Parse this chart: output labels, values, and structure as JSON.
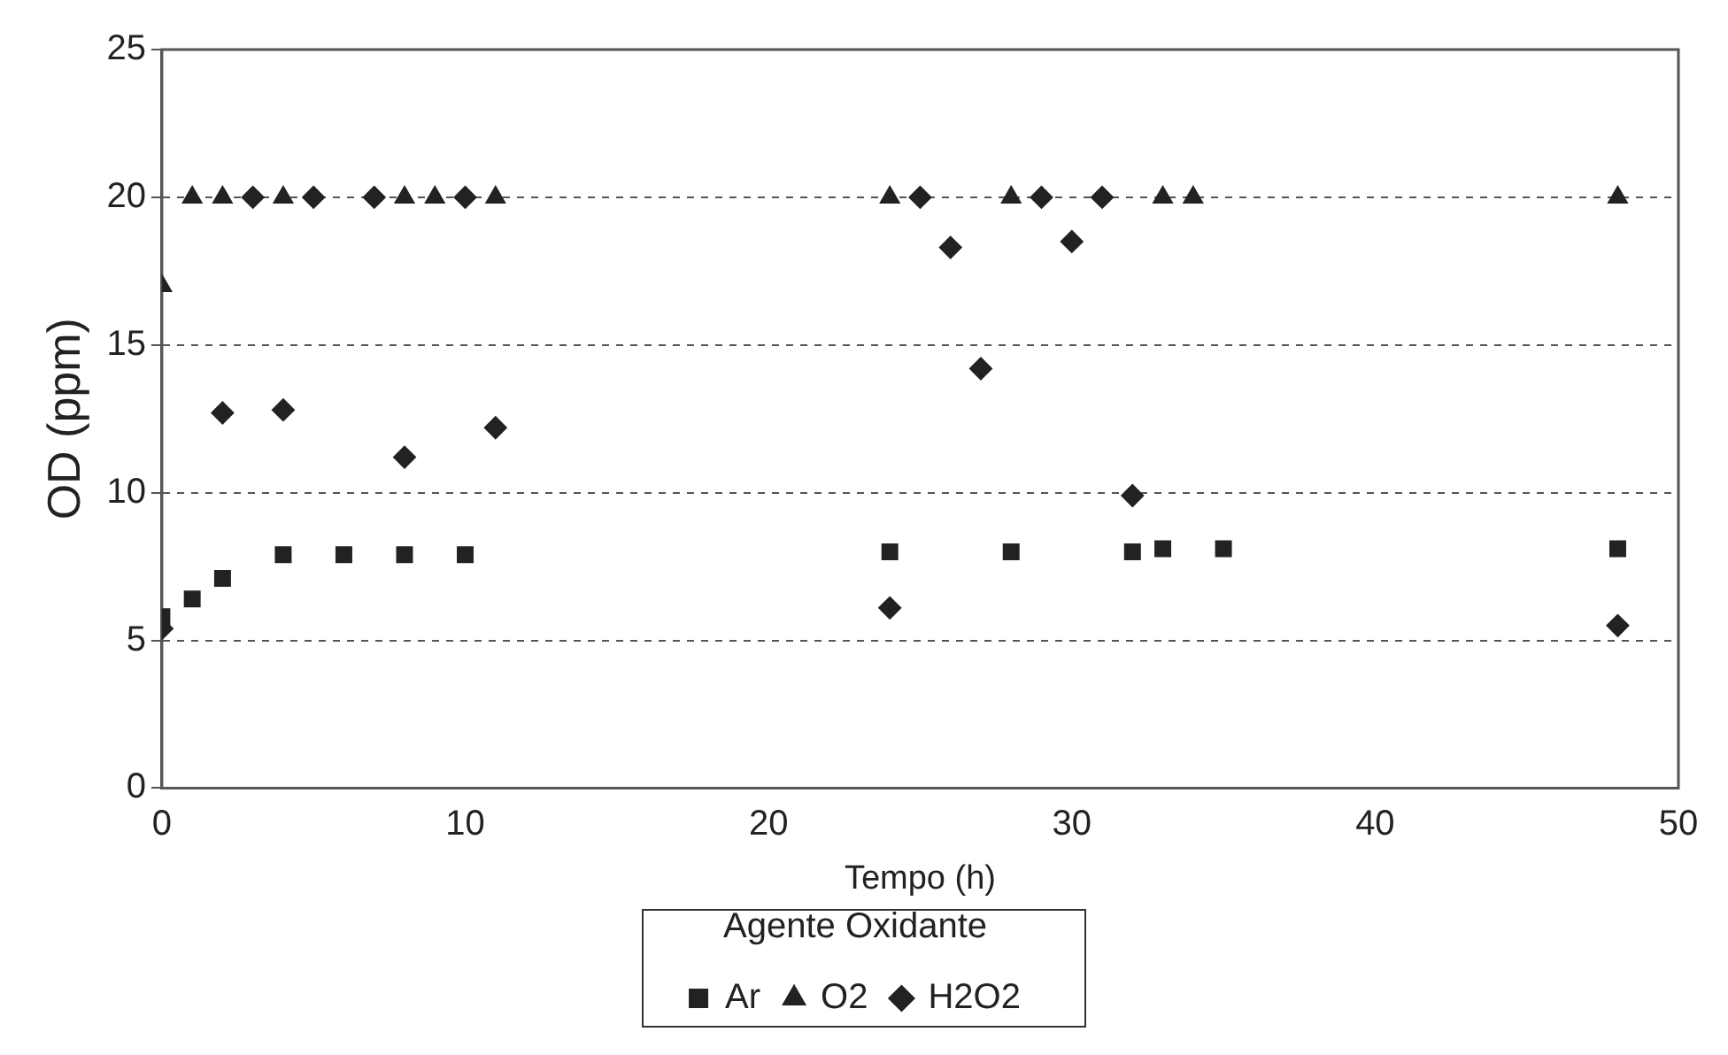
{
  "chart_data": {
    "type": "scatter",
    "xlabel": "Tempo (h)",
    "ylabel": "OD (ppm)",
    "legend_title": "Agente Oxidante",
    "legend": "bottom",
    "grid": "y",
    "xlim": [
      0,
      50
    ],
    "xticks": [
      0,
      10,
      20,
      30,
      40,
      50
    ],
    "ylim": [
      0,
      25
    ],
    "yticks": [
      0,
      5,
      10,
      15,
      20,
      25
    ],
    "series": [
      {
        "name": "Ar",
        "color": "#222222",
        "marker": "square",
        "x": [
          0,
          1,
          2,
          4,
          6,
          8,
          10,
          24,
          28,
          32,
          33,
          35,
          48
        ],
        "values": [
          5.8,
          6.4,
          7.1,
          7.9,
          7.9,
          7.9,
          7.9,
          8.0,
          8.0,
          8.0,
          8.1,
          8.1,
          8.1
        ]
      },
      {
        "name": "O2",
        "color": "#222222",
        "marker": "triangle",
        "x": [
          0,
          1,
          2,
          4,
          5,
          7,
          8,
          9,
          11,
          24,
          28,
          31,
          33,
          34,
          48
        ],
        "values": [
          17,
          20,
          20,
          20,
          null,
          null,
          20,
          20,
          20,
          20,
          20,
          null,
          20,
          20,
          20
        ]
      },
      {
        "name": "H2O2",
        "color": "#222222",
        "marker": "diamond",
        "x": [
          0,
          2,
          3,
          4,
          5,
          7,
          8,
          10,
          11,
          24,
          25,
          26,
          27,
          29,
          30,
          31,
          32,
          48
        ],
        "values": [
          5.4,
          12.7,
          20,
          12.8,
          20,
          20,
          11.2,
          20,
          12.2,
          6.1,
          20,
          18.3,
          14.2,
          20,
          18.5,
          20,
          9.9,
          5.5
        ]
      }
    ]
  }
}
